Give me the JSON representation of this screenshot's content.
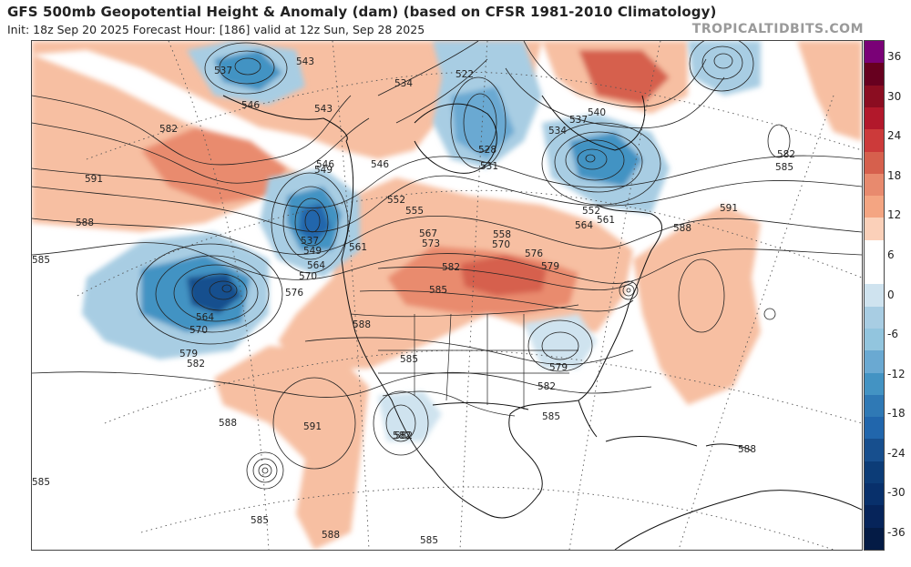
{
  "header": {
    "title": "GFS 500mb Geopotential Height & Anomaly (dam) (based on CFSR 1981-2010 Climatology)",
    "subtitle": "Init: 18z Sep 20 2025   Forecast Hour: [186]   valid at 12z Sun, Sep 28 2025",
    "brand": "TROPICALTIDBITS.COM"
  },
  "colorbar": {
    "ticks": [
      "36",
      "30",
      "24",
      "18",
      "12",
      "6",
      "0",
      "-6",
      "-12",
      "-18",
      "-24",
      "-30",
      "-36"
    ],
    "colors": [
      "#7a0177",
      "#67001f",
      "#8b0d21",
      "#b2182b",
      "#cc3a3a",
      "#d6604d",
      "#e88a6e",
      "#f4a582",
      "#fbd0b9",
      "#ffffff",
      "#ffffff",
      "#cfe3ef",
      "#a8cde3",
      "#92c5de",
      "#6aa9d2",
      "#4393c3",
      "#2f79b5",
      "#2166ac",
      "#174f8e",
      "#0c3c77",
      "#08306b",
      "#06245a",
      "#041b45"
    ]
  },
  "contour_labels": [
    "537",
    "543",
    "534",
    "522",
    "537",
    "540",
    "546",
    "543",
    "582",
    "534",
    "591",
    "546",
    "528",
    "531",
    "588",
    "549",
    "552",
    "555",
    "546",
    "552",
    "564",
    "561",
    "537",
    "567",
    "558",
    "561",
    "549",
    "570",
    "576",
    "564",
    "573",
    "582",
    "570",
    "579",
    "585",
    "576",
    "564",
    "585",
    "570",
    "588",
    "579",
    "582",
    "585",
    "591",
    "582",
    "579",
    "582",
    "585",
    "588",
    "591",
    "585",
    "585",
    "588",
    "588",
    "585",
    "588",
    "582",
    "582",
    "585"
  ]
}
